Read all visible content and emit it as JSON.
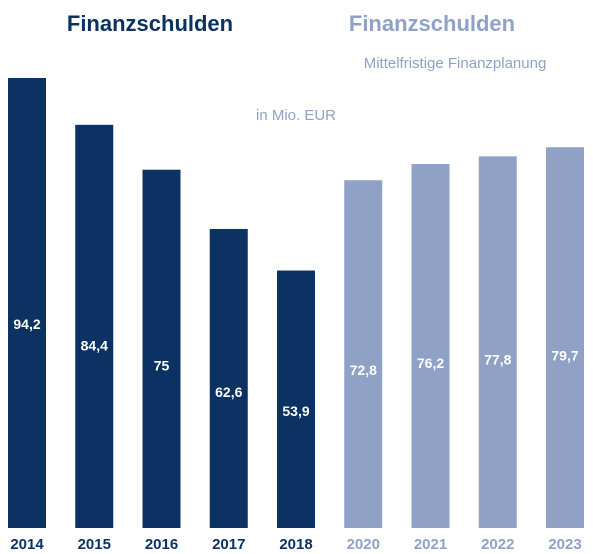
{
  "chart_data": {
    "type": "bar",
    "title": "Finanzschulden",
    "plan_title": "Finanzschulden",
    "plan_subtitle": "Mittelfristige Finanzplanung",
    "unit_label": "in Mio. EUR",
    "categories": [
      "2014",
      "2015",
      "2016",
      "2017",
      "2018",
      "2020",
      "2021",
      "2022",
      "2023"
    ],
    "values": [
      94.2,
      84.4,
      75,
      62.6,
      53.9,
      72.8,
      76.2,
      77.8,
      79.7
    ],
    "value_labels": [
      "94,2",
      "84,4",
      "75",
      "62,6",
      "53,9",
      "72,8",
      "76,2",
      "77,8",
      "79,7"
    ],
    "colors": [
      "#0b3262",
      "#0b3262",
      "#0b3262",
      "#0b3262",
      "#0b3262",
      "#8fa2c6",
      "#8fa2c6",
      "#8fa2c6",
      "#8fa2c6"
    ]
  }
}
